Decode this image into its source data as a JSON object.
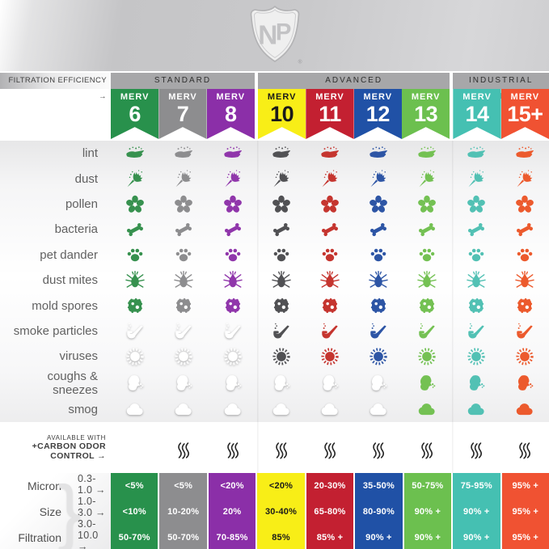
{
  "logo": {
    "letters": "NP",
    "registered": "®"
  },
  "header": {
    "filtration_label": "FILTRATION EFFICIENCY →",
    "merv_prefix": "MERV",
    "groups": [
      {
        "label": "STANDARD",
        "span": 3
      },
      {
        "label": "ADVANCED",
        "span": 4
      },
      {
        "label": "INDUSTRIAL STRENGTH",
        "span": 2
      }
    ],
    "columns": [
      {
        "number": "6",
        "color": "#28914c",
        "icon_color": "#37914f",
        "text": "#ffffff"
      },
      {
        "number": "7",
        "color": "#8d8d8f",
        "icon_color": "#8d8d8f",
        "text": "#ffffff"
      },
      {
        "number": "8",
        "color": "#8b2fa8",
        "icon_color": "#9036ab",
        "text": "#ffffff"
      },
      {
        "number": "10",
        "color": "#f8ee17",
        "icon_color": "#515154",
        "text": "#1a1a1a"
      },
      {
        "number": "11",
        "color": "#c32031",
        "icon_color": "#c5352f",
        "text": "#ffffff"
      },
      {
        "number": "12",
        "color": "#2051a6",
        "icon_color": "#2d55a5",
        "text": "#ffffff"
      },
      {
        "number": "13",
        "color": "#6cc04f",
        "icon_color": "#74c153",
        "text": "#ffffff"
      },
      {
        "number": "14",
        "color": "#45c0b2",
        "icon_color": "#52c1b4",
        "text": "#ffffff"
      },
      {
        "number": "15+",
        "color": "#f05232",
        "icon_color": "#ec5a2d",
        "text": "#ffffff"
      }
    ]
  },
  "rows": [
    {
      "label": "lint",
      "icon": "lint",
      "colored_from": 0
    },
    {
      "label": "dust",
      "icon": "dust",
      "colored_from": 0
    },
    {
      "label": "pollen",
      "icon": "pollen",
      "colored_from": 0
    },
    {
      "label": "bacteria",
      "icon": "bacteria",
      "colored_from": 0
    },
    {
      "label": "pet dander",
      "icon": "paw",
      "colored_from": 0
    },
    {
      "label": "dust mites",
      "icon": "mite",
      "colored_from": 0
    },
    {
      "label": "mold spores",
      "icon": "mold",
      "colored_from": 0
    },
    {
      "label": "smoke particles",
      "icon": "pipe",
      "colored_from": 3
    },
    {
      "label": "viruses",
      "icon": "virus",
      "colored_from": 3
    },
    {
      "label": "coughs & sneezes",
      "icon": "sneeze",
      "colored_from": 6
    },
    {
      "label": "smog",
      "icon": "smog",
      "colored_from": 6
    }
  ],
  "carbon": {
    "label_line1": "AVAILABLE WITH",
    "label_line2": "+CARBON ODOR CONTROL →",
    "available_from": 1
  },
  "bottom_table": {
    "row_labels": [
      "Micron",
      "Size",
      "Filtration"
    ],
    "brace": "}",
    "ranges": [
      "0.3-1.0 →",
      "1.0-3.0 →",
      "3.0-10.0 →"
    ],
    "values": [
      [
        "<5%",
        "<10%",
        "50-70%"
      ],
      [
        "<5%",
        "10-20%",
        "50-70%"
      ],
      [
        "<20%",
        "20%",
        "70-85%"
      ],
      [
        "<20%",
        "30-40%",
        "85%"
      ],
      [
        "20-30%",
        "65-80%",
        "85% +"
      ],
      [
        "35-50%",
        "80-90%",
        "90% +"
      ],
      [
        "50-75%",
        "90% +",
        "90% +"
      ],
      [
        "75-95%",
        "90% +",
        "90% +"
      ],
      [
        "95% +",
        "95% +",
        "95% +"
      ]
    ]
  },
  "chart_data": {
    "type": "table",
    "title": "FILTRATION EFFICIENCY",
    "columns": [
      "MERV 6",
      "MERV 7",
      "MERV 8",
      "MERV 10",
      "MERV 11",
      "MERV 12",
      "MERV 13",
      "MERV 14",
      "MERV 15+"
    ],
    "column_groups": [
      {
        "label": "STANDARD",
        "columns": [
          "MERV 6",
          "MERV 7",
          "MERV 8"
        ]
      },
      {
        "label": "ADVANCED",
        "columns": [
          "MERV 10",
          "MERV 11",
          "MERV 12",
          "MERV 13"
        ]
      },
      {
        "label": "INDUSTRIAL STRENGTH",
        "columns": [
          "MERV 14",
          "MERV 15+"
        ]
      }
    ],
    "captures": {
      "lint": [
        true,
        true,
        true,
        true,
        true,
        true,
        true,
        true,
        true
      ],
      "dust": [
        true,
        true,
        true,
        true,
        true,
        true,
        true,
        true,
        true
      ],
      "pollen": [
        true,
        true,
        true,
        true,
        true,
        true,
        true,
        true,
        true
      ],
      "bacteria": [
        true,
        true,
        true,
        true,
        true,
        true,
        true,
        true,
        true
      ],
      "pet dander": [
        true,
        true,
        true,
        true,
        true,
        true,
        true,
        true,
        true
      ],
      "dust mites": [
        true,
        true,
        true,
        true,
        true,
        true,
        true,
        true,
        true
      ],
      "mold spores": [
        true,
        true,
        true,
        true,
        true,
        true,
        true,
        true,
        true
      ],
      "smoke particles": [
        false,
        false,
        false,
        true,
        true,
        true,
        true,
        true,
        true
      ],
      "viruses": [
        false,
        false,
        false,
        true,
        true,
        true,
        true,
        true,
        true
      ],
      "coughs & sneezes": [
        false,
        false,
        false,
        false,
        false,
        false,
        true,
        true,
        true
      ],
      "smog": [
        false,
        false,
        false,
        false,
        false,
        false,
        true,
        true,
        true
      ]
    },
    "carbon_odor_control_available": [
      false,
      true,
      true,
      true,
      true,
      true,
      true,
      true,
      true
    ],
    "efficiency": {
      "micron_0.3-1.0": [
        "<5%",
        "<5%",
        "<20%",
        "<20%",
        "20-30%",
        "35-50%",
        "50-75%",
        "75-95%",
        "95% +"
      ],
      "micron_1.0-3.0": [
        "<10%",
        "10-20%",
        "20%",
        "30-40%",
        "65-80%",
        "80-90%",
        "90% +",
        "90% +",
        "95% +"
      ],
      "micron_3.0-10.0": [
        "50-70%",
        "50-70%",
        "70-85%",
        "85%",
        "85% +",
        "90% +",
        "90% +",
        "90% +",
        "95% +"
      ]
    }
  }
}
